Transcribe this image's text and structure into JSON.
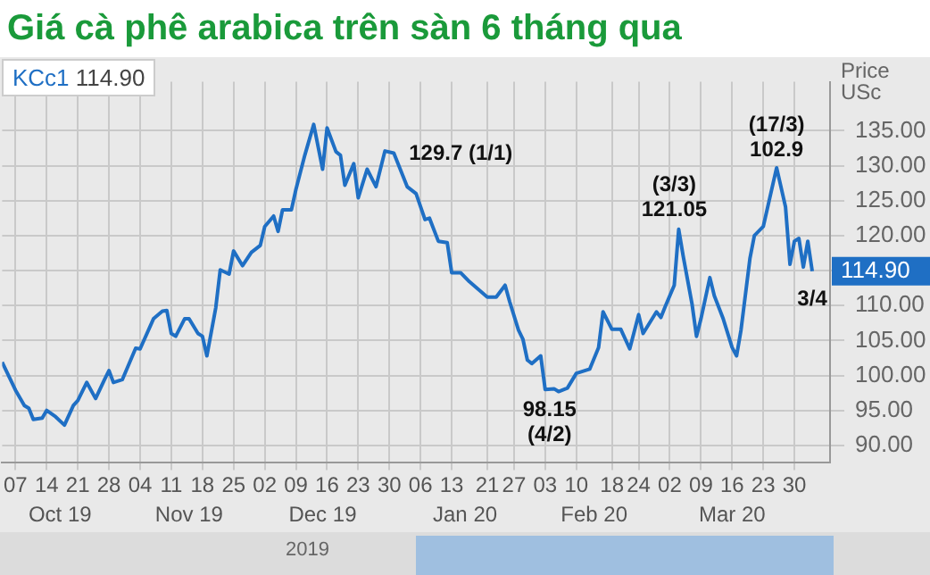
{
  "chart_data": {
    "type": "line",
    "title": "Giá cà phê arabica trên sàn 6 tháng qua",
    "ylabel": "Price\nUSc",
    "x": [
      "2019-10-04",
      "2019-10-07",
      "2019-10-09",
      "2019-10-10",
      "2019-10-11",
      "2019-10-13",
      "2019-10-14",
      "2019-10-16",
      "2019-10-18",
      "2019-10-20",
      "2019-10-21",
      "2019-10-23",
      "2019-10-25",
      "2019-10-27",
      "2019-10-28",
      "2019-10-29",
      "2019-10-31",
      "2019-11-03",
      "2019-11-04",
      "2019-11-07",
      "2019-11-09",
      "2019-11-10",
      "2019-11-11",
      "2019-11-12",
      "2019-11-14",
      "2019-11-15",
      "2019-11-17",
      "2019-11-18",
      "2019-11-19",
      "2019-11-21",
      "2019-11-22",
      "2019-11-24",
      "2019-11-25",
      "2019-11-27",
      "2019-11-29",
      "2019-12-01",
      "2019-12-02",
      "2019-12-04",
      "2019-12-05",
      "2019-12-06",
      "2019-12-08",
      "2019-12-09",
      "2019-12-11",
      "2019-12-13",
      "2019-12-15",
      "2019-12-16",
      "2019-12-18",
      "2019-12-19",
      "2019-12-20",
      "2019-12-22",
      "2019-12-23",
      "2019-12-25",
      "2019-12-27",
      "2019-12-29",
      "2019-12-31",
      "2020-01-03",
      "2020-01-05",
      "2020-01-07",
      "2020-01-08",
      "2020-01-10",
      "2020-01-12",
      "2020-01-13",
      "2020-01-15",
      "2020-01-17",
      "2020-01-21",
      "2020-01-23",
      "2020-01-25",
      "2020-01-26",
      "2020-01-28",
      "2020-01-29",
      "2020-01-30",
      "2020-01-31",
      "2020-02-02",
      "2020-02-03",
      "2020-02-05",
      "2020-02-06",
      "2020-02-08",
      "2020-02-10",
      "2020-02-13",
      "2020-02-15",
      "2020-02-16",
      "2020-02-18",
      "2020-02-20",
      "2020-02-22",
      "2020-02-24",
      "2020-02-25",
      "2020-02-28",
      "2020-02-29",
      "2020-03-01",
      "2020-03-03",
      "2020-03-04",
      "2020-03-05",
      "2020-03-07",
      "2020-03-08",
      "2020-03-09",
      "2020-03-11",
      "2020-03-12",
      "2020-03-14",
      "2020-03-16",
      "2020-03-17",
      "2020-03-18",
      "2020-03-20",
      "2020-03-21",
      "2020-03-23",
      "2020-03-26",
      "2020-03-28",
      "2020-03-29",
      "2020-03-30",
      "2020-03-31",
      "2020-04-01",
      "2020-04-02",
      "2020-04-03"
    ],
    "series": [
      {
        "name": "KCc1",
        "color": "#1f6fc4",
        "values": [
          101.9,
          97.9,
          95.7,
          95.3,
          93.7,
          93.9,
          95.0,
          94.1,
          92.9,
          95.7,
          96.4,
          99.0,
          96.7,
          99.4,
          100.7,
          99.0,
          99.4,
          103.9,
          103.8,
          108.1,
          109.2,
          109.3,
          106.0,
          105.6,
          108.1,
          108.1,
          106.0,
          105.6,
          102.8,
          109.7,
          115.1,
          114.5,
          117.8,
          115.7,
          117.6,
          118.6,
          121.3,
          122.8,
          120.6,
          123.7,
          123.7,
          126.6,
          131.5,
          135.9,
          129.5,
          135.4,
          132.0,
          131.5,
          127.2,
          130.3,
          125.4,
          129.5,
          127.0,
          132.1,
          131.8,
          127.0,
          126.0,
          122.3,
          122.5,
          119.2,
          119.0,
          114.7,
          114.7,
          113.4,
          111.2,
          111.2,
          112.9,
          110.6,
          106.5,
          105.2,
          102.2,
          101.7,
          102.8,
          98.0,
          98.1,
          97.7,
          98.2,
          100.3,
          100.9,
          104.0,
          109.1,
          106.6,
          106.6,
          103.8,
          108.7,
          106.0,
          109.1,
          108.3,
          109.9,
          112.9,
          120.9,
          117.1,
          110.2,
          105.6,
          108.1,
          114.0,
          111.4,
          108.1,
          104.0,
          102.8,
          106.5,
          116.7,
          120.0,
          121.3,
          129.7,
          124.1,
          115.9,
          119.2,
          119.6,
          115.5,
          119.2,
          114.9
        ],
        "value_labels": [
          null,
          null,
          null,
          null,
          null,
          null,
          null,
          null,
          null,
          null,
          null,
          null,
          null,
          null,
          null,
          null,
          null,
          null,
          null,
          null,
          null,
          null,
          null,
          null,
          null,
          null,
          null,
          null,
          null,
          null,
          null,
          null,
          null,
          null,
          null,
          null,
          null,
          null,
          null,
          null,
          null,
          null,
          null,
          null,
          null,
          null,
          null,
          null,
          null,
          null,
          null,
          null,
          null,
          null,
          null,
          null,
          null,
          null,
          null,
          null,
          null,
          null,
          null,
          null,
          null,
          null,
          null,
          null,
          null,
          null,
          null,
          null,
          null,
          null,
          null,
          null,
          null,
          null,
          null,
          null,
          null,
          null,
          null,
          null,
          null,
          null,
          null,
          null,
          null,
          null,
          null,
          null,
          null,
          null,
          null,
          null,
          null,
          null,
          null,
          null,
          null,
          null,
          null,
          null,
          null,
          null,
          null,
          null,
          null,
          null,
          null,
          "114.90"
        ]
      }
    ],
    "xlim": [
      "2019-10-04",
      "2020-04-07"
    ],
    "xticks": [
      {
        "value": "2019-10-07",
        "label": "07"
      },
      {
        "value": "2019-10-14",
        "label": "14"
      },
      {
        "value": "2019-10-21",
        "label": "21"
      },
      {
        "value": "2019-10-28",
        "label": "28"
      },
      {
        "value": "2019-11-04",
        "label": "04"
      },
      {
        "value": "2019-11-11",
        "label": "11"
      },
      {
        "value": "2019-11-18",
        "label": "18"
      },
      {
        "value": "2019-11-25",
        "label": "25"
      },
      {
        "value": "2019-12-02",
        "label": "02"
      },
      {
        "value": "2019-12-09",
        "label": "09"
      },
      {
        "value": "2019-12-16",
        "label": "16"
      },
      {
        "value": "2019-12-23",
        "label": "23"
      },
      {
        "value": "2019-12-30",
        "label": "30"
      },
      {
        "value": "2020-01-06",
        "label": "06"
      },
      {
        "value": "2020-01-13",
        "label": "13"
      },
      {
        "value": "2020-01-21",
        "label": "21"
      },
      {
        "value": "2020-01-27",
        "label": "27"
      },
      {
        "value": "2020-02-03",
        "label": "03"
      },
      {
        "value": "2020-02-10",
        "label": "10"
      },
      {
        "value": "2020-02-18",
        "label": "18"
      },
      {
        "value": "2020-02-24",
        "label": "24"
      },
      {
        "value": "2020-03-02",
        "label": "02"
      },
      {
        "value": "2020-03-09",
        "label": "09"
      },
      {
        "value": "2020-03-16",
        "label": "16"
      },
      {
        "value": "2020-03-23",
        "label": "23"
      },
      {
        "value": "2020-03-30",
        "label": "30"
      }
    ],
    "ylim": [
      87.5,
      142
    ],
    "yticks": [
      {
        "value": 90,
        "label": "90.00"
      },
      {
        "value": 95,
        "label": "95.00"
      },
      {
        "value": 100,
        "label": "100.00"
      },
      {
        "value": 105,
        "label": "105.00"
      },
      {
        "value": 110,
        "label": "110.00"
      },
      {
        "value": 115,
        "label": null
      },
      {
        "value": 120,
        "label": "120.00"
      },
      {
        "value": 125,
        "label": "125.00"
      },
      {
        "value": 130,
        "label": "130.00"
      },
      {
        "value": 135,
        "label": "135.00"
      }
    ],
    "grid": true,
    "legend": "top left",
    "marker": "none",
    "line_style": "solid",
    "annotations": [
      {
        "text": "129.7 (1/1)",
        "x": "2020-01-01",
        "y": 129.7
      },
      {
        "text": "98.15\n(4/2)",
        "x": "2020-02-04",
        "y": 98.15
      },
      {
        "text": "(3/3)\n121.05",
        "x": "2020-03-03",
        "y": 121.05
      },
      {
        "text": "(17/3)\n102.9",
        "x": "2020-03-26",
        "y": 129.7
      },
      {
        "text": "3/4",
        "x": "2020-04-03",
        "y": 114.9
      },
      "2019"
    ],
    "x2lim": [
      "2019-10-04",
      "2020-04-07"
    ],
    "x2ticks": [
      {
        "value": "2019-10-17",
        "label": "Oct 19"
      },
      {
        "value": "2019-11-15",
        "label": "Nov 19"
      },
      {
        "value": "2019-12-15",
        "label": "Dec 19"
      },
      {
        "value": "2020-01-16",
        "label": "Jan 20"
      },
      {
        "value": "2020-02-14",
        "label": "Feb 20"
      },
      {
        "value": "2020-03-16",
        "label": "Mar 20"
      }
    ]
  }
}
